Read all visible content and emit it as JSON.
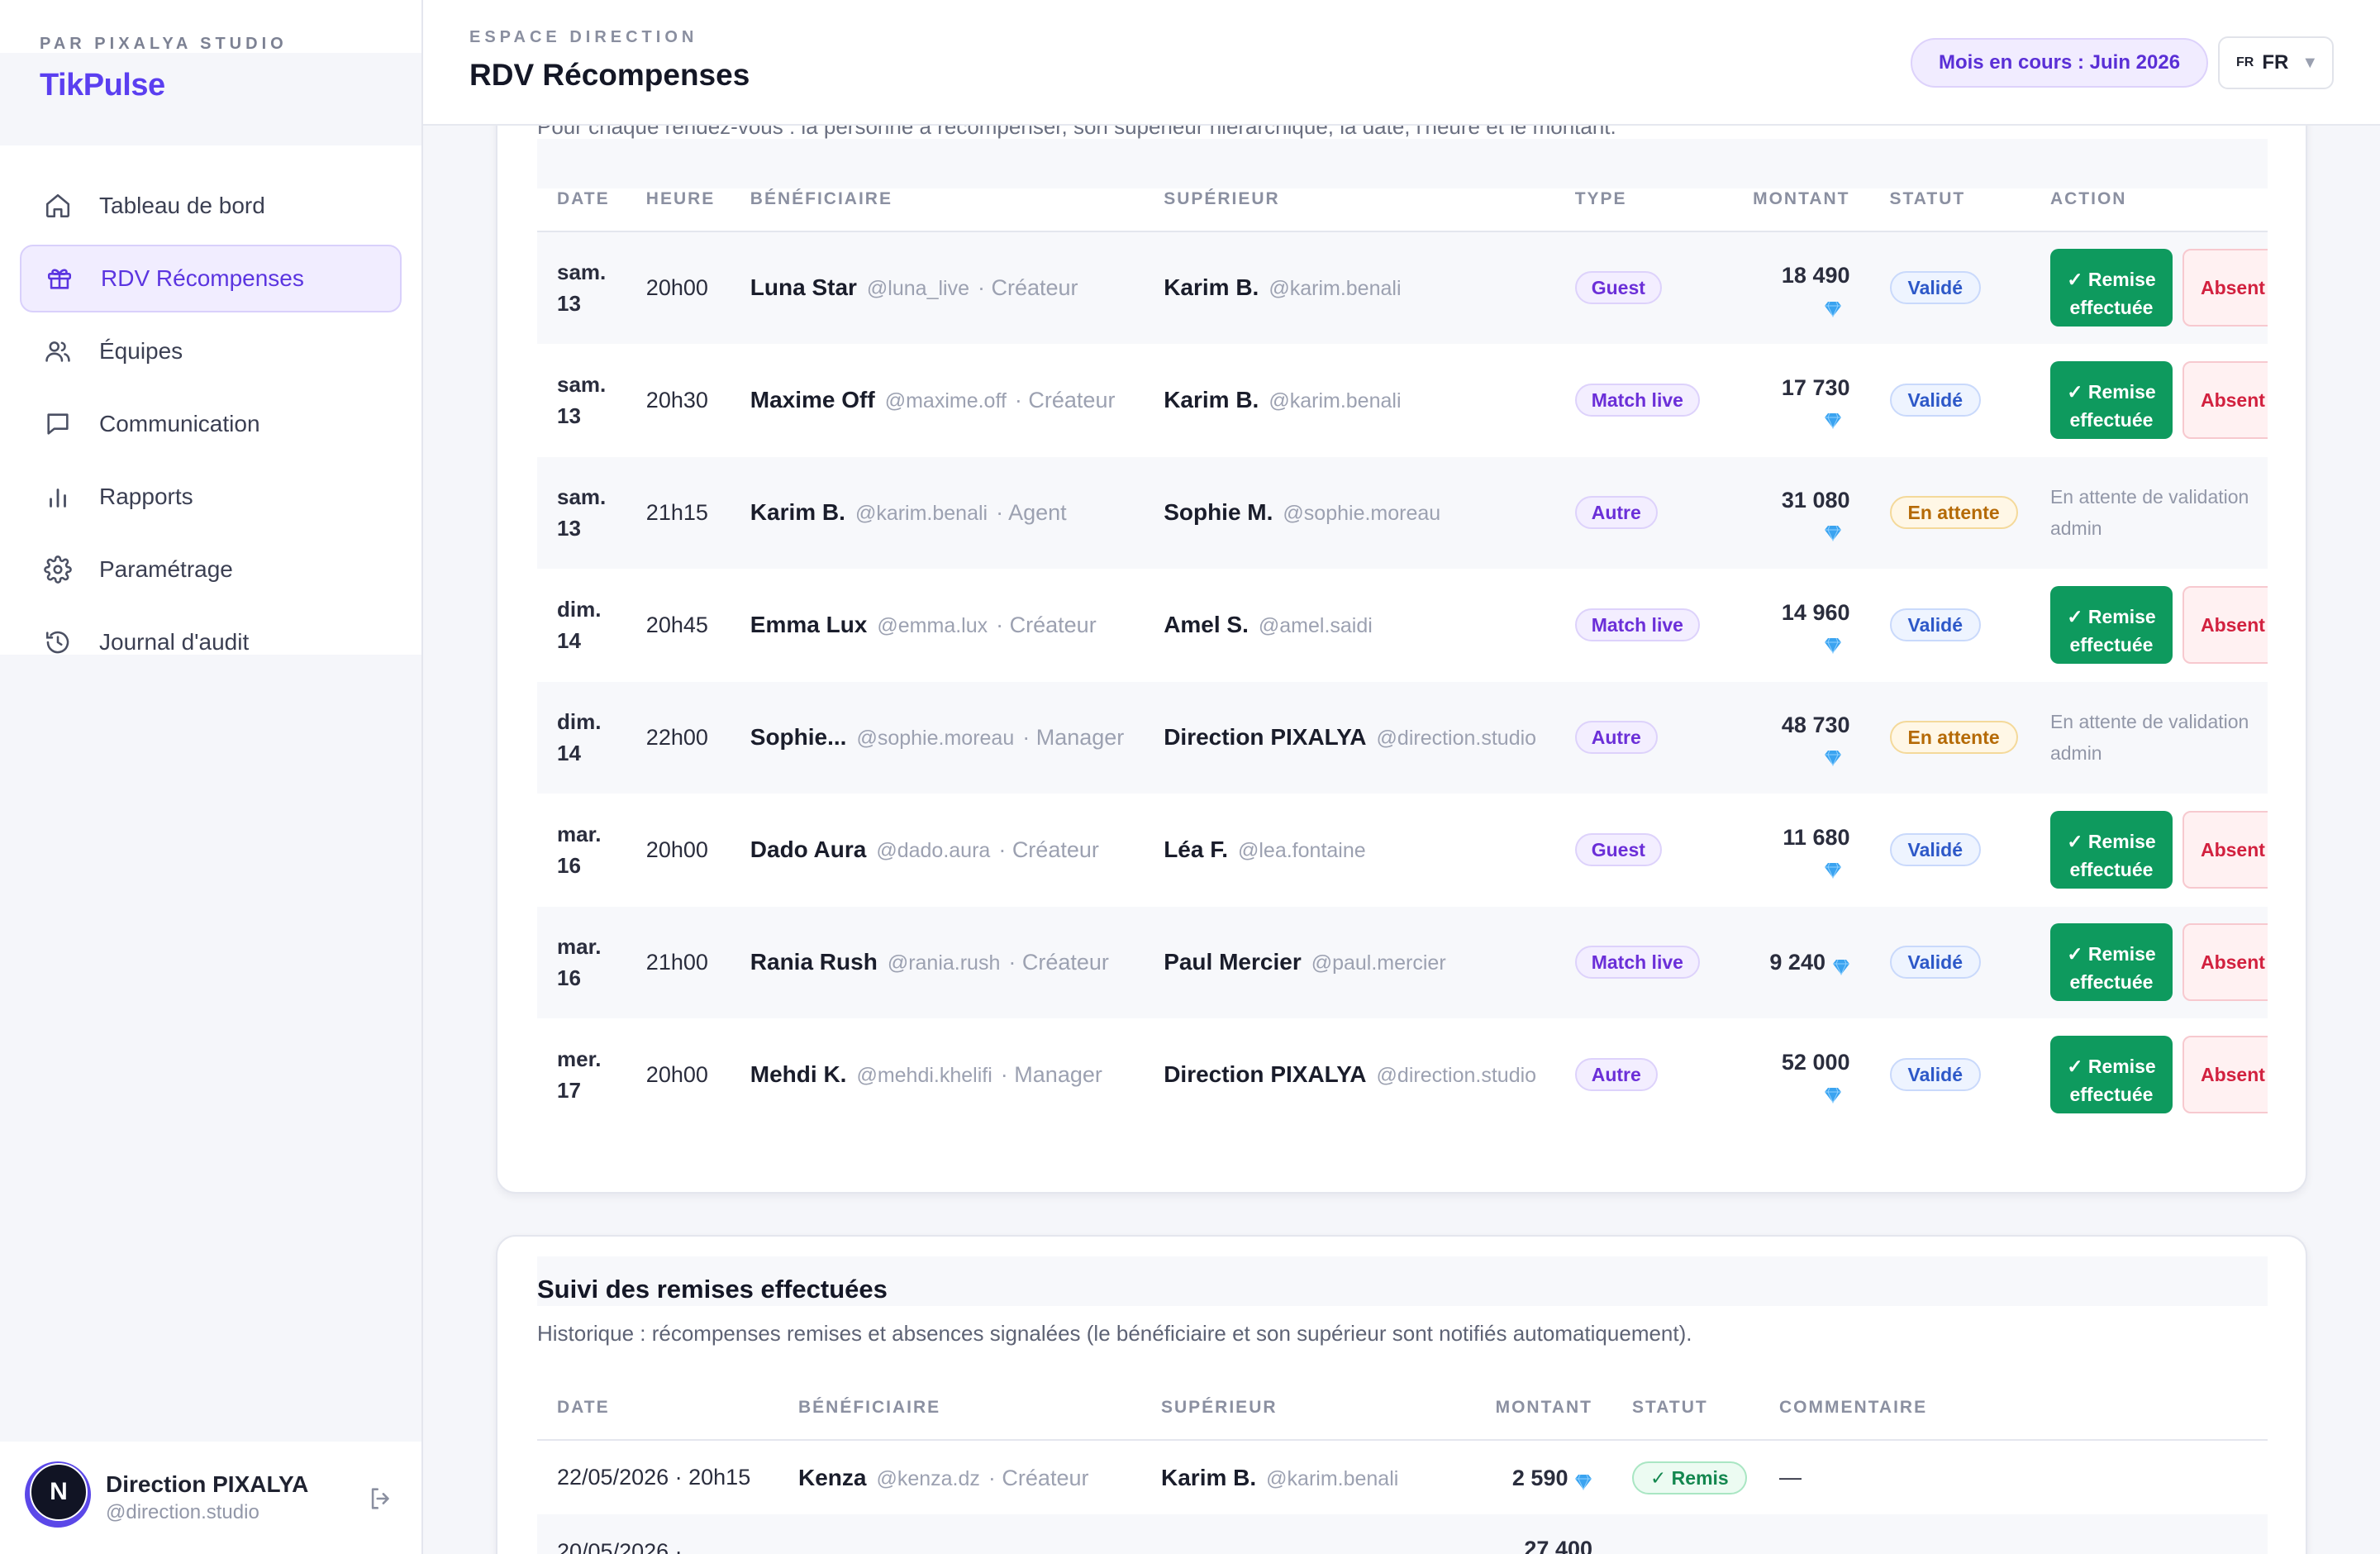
{
  "sidebar": {
    "studio_kicker": "PAR PIXALYA STUDIO",
    "brand": "TikPulse",
    "nav": [
      {
        "label": "Tableau de bord",
        "icon": "home-icon"
      },
      {
        "label": "RDV Récompenses",
        "icon": "gift-icon",
        "active": true
      },
      {
        "label": "Équipes",
        "icon": "users-icon"
      },
      {
        "label": "Communication",
        "icon": "chat-icon"
      },
      {
        "label": "Rapports",
        "icon": "bar-chart-icon"
      },
      {
        "label": "Paramétrage",
        "icon": "gear-icon"
      },
      {
        "label": "Journal d'audit",
        "icon": "history-icon"
      }
    ],
    "user": {
      "initial": "N",
      "name": "Direction PIXALYA",
      "handle": "@direction.studio",
      "logout_icon": "logout-icon"
    }
  },
  "header": {
    "kicker": "ESPACE DIRECTION",
    "title": "RDV Récompenses",
    "month_pill": "Mois en cours : Juin 2026",
    "lang_small": "FR",
    "lang": "FR",
    "caret": "▼"
  },
  "colors": {
    "accent": "#5b3ff0",
    "success": "#0e9a5e",
    "danger": "#d2213f",
    "pending": "#b56a06",
    "info": "#2d58c8"
  },
  "rdv": {
    "subtitle": "Pour chaque rendez-vous : la personne à récompenser, son supérieur hiérarchique, la date, l'heure et le montant.",
    "columns": [
      "DATE",
      "HEURE",
      "BÉNÉFICIAIRE",
      "SUPÉRIEUR",
      "TYPE",
      "MONTANT",
      "STATUT",
      "ACTION"
    ],
    "remise_label": "✓ Remise effectuée",
    "absent_label": "Absent",
    "pending_label": "En attente de validation admin",
    "rows": [
      {
        "day": "sam.",
        "num": "13",
        "heure": "20h00",
        "benef_name": "Luna Star",
        "benef_handle": "@luna_live",
        "benef_role": "Créateur",
        "sup_name": "Karim B.",
        "sup_handle": "@karim.benali",
        "type": "Guest",
        "montant": "18 490",
        "statut": "Validé",
        "status_kind": "valide"
      },
      {
        "day": "sam.",
        "num": "13",
        "heure": "20h30",
        "benef_name": "Maxime Off",
        "benef_handle": "@maxime.off",
        "benef_role": "Créateur",
        "sup_name": "Karim B.",
        "sup_handle": "@karim.benali",
        "type": "Match live",
        "montant": "17 730",
        "statut": "Validé",
        "status_kind": "valide"
      },
      {
        "day": "sam.",
        "num": "13",
        "heure": "21h15",
        "benef_name": "Karim B.",
        "benef_handle": "@karim.benali",
        "benef_role": "Agent",
        "sup_name": "Sophie M.",
        "sup_handle": "@sophie.moreau",
        "type": "Autre",
        "montant": "31 080",
        "statut": "En attente",
        "status_kind": "attente"
      },
      {
        "day": "dim.",
        "num": "14",
        "heure": "20h45",
        "benef_name": "Emma Lux",
        "benef_handle": "@emma.lux",
        "benef_role": "Créateur",
        "sup_name": "Amel S.",
        "sup_handle": "@amel.saidi",
        "type": "Match live",
        "montant": "14 960",
        "statut": "Validé",
        "status_kind": "valide"
      },
      {
        "day": "dim.",
        "num": "14",
        "heure": "22h00",
        "benef_name": "Sophie...",
        "benef_handle": "@sophie.moreau",
        "benef_role": "Manager",
        "sup_name": "Direction PIXALYA",
        "sup_handle": "@direction.studio",
        "type": "Autre",
        "montant": "48 730",
        "statut": "En attente",
        "status_kind": "attente"
      },
      {
        "day": "mar.",
        "num": "16",
        "heure": "20h00",
        "benef_name": "Dado Aura",
        "benef_handle": "@dado.aura",
        "benef_role": "Créateur",
        "sup_name": "Léa F.",
        "sup_handle": "@lea.fontaine",
        "type": "Guest",
        "montant": "11 680",
        "statut": "Validé",
        "status_kind": "valide"
      },
      {
        "day": "mar.",
        "num": "16",
        "heure": "21h00",
        "benef_name": "Rania Rush",
        "benef_handle": "@rania.rush",
        "benef_role": "Créateur",
        "sup_name": "Paul Mercier",
        "sup_handle": "@paul.mercier",
        "type": "Match live",
        "montant": "9 240",
        "statut": "Validé",
        "status_kind": "valide"
      },
      {
        "day": "mer.",
        "num": "17",
        "heure": "20h00",
        "benef_name": "Mehdi K.",
        "benef_handle": "@mehdi.khelifi",
        "benef_role": "Manager",
        "sup_name": "Direction PIXALYA",
        "sup_handle": "@direction.studio",
        "type": "Autre",
        "montant": "52 000",
        "statut": "Validé",
        "status_kind": "valide"
      }
    ]
  },
  "suivi": {
    "title": "Suivi des remises effectuées",
    "description": "Historique : récompenses remises et absences signalées (le bénéficiaire et son supérieur sont notifiés automatiquement).",
    "columns": [
      "DATE",
      "BÉNÉFICIAIRE",
      "SUPÉRIEUR",
      "MONTANT",
      "STATUT",
      "COMMENTAIRE"
    ],
    "rows": [
      {
        "date": "22/05/2026 · 20h15",
        "benef_name": "Kenza",
        "benef_handle": "@kenza.dz",
        "benef_role": "Créateur",
        "sup_name": "Karim B.",
        "sup_handle": "@karim.benali",
        "montant": "2 590",
        "statut": "✓ Remis",
        "commentaire": "—"
      },
      {
        "date": "20/05/2026 ·",
        "montant": "27 400"
      }
    ]
  }
}
